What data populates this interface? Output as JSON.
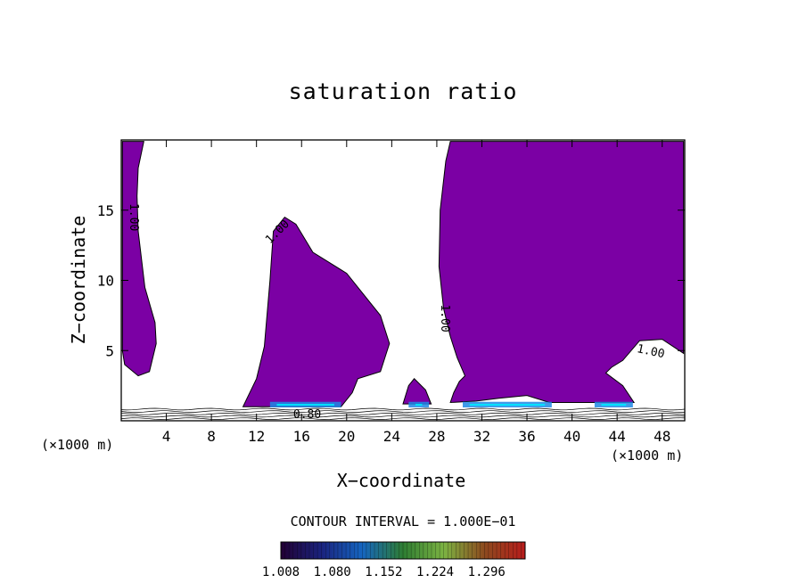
{
  "chart_data": {
    "type": "heatmap",
    "title": "saturation ratio",
    "xlabel": "X−coordinate",
    "ylabel": "Z−coordinate",
    "x_unit_label": "(×1000 m)",
    "xlim": [
      0,
      50
    ],
    "ylim": [
      0,
      20
    ],
    "x_ticks": [
      "4",
      "8",
      "12",
      "16",
      "20",
      "24",
      "28",
      "32",
      "36",
      "40",
      "44",
      "48"
    ],
    "x_tick_values": [
      4,
      8,
      12,
      16,
      20,
      24,
      28,
      32,
      36,
      40,
      44,
      48
    ],
    "y_ticks": [
      "5",
      "10",
      "15"
    ],
    "y_tick_values": [
      5,
      10,
      15
    ],
    "contour_interval_label": "CONTOUR INTERVAL = 1.000E−01",
    "contour_labels": [
      {
        "text": "1.00",
        "x": 1.2,
        "z": 14.5,
        "angle": 90
      },
      {
        "text": "1.00",
        "x": 13.8,
        "z": 13.5,
        "angle": -45
      },
      {
        "text": "1.00",
        "x": 28.8,
        "z": 7.3,
        "angle": 90
      },
      {
        "text": "1.00",
        "x": 47.0,
        "z": 5.0,
        "angle": 12
      },
      {
        "text": "0.80",
        "x": 16.5,
        "z": 0.5,
        "angle": 0
      }
    ],
    "supersaturated_regions": [
      {
        "outline": [
          [
            0.1,
            19.9
          ],
          [
            2.0,
            19.9
          ],
          [
            1.5,
            18.0
          ],
          [
            1.4,
            16.0
          ],
          [
            1.5,
            13.5
          ],
          [
            2.1,
            9.5
          ],
          [
            3.0,
            7.0
          ],
          [
            3.1,
            5.5
          ],
          [
            2.5,
            3.5
          ],
          [
            1.5,
            3.2
          ],
          [
            0.3,
            4.0
          ],
          [
            0.1,
            5.0
          ]
        ]
      },
      {
        "outline": [
          [
            10.8,
            1.0
          ],
          [
            12.0,
            3.0
          ],
          [
            12.7,
            5.3
          ],
          [
            13.2,
            10.0
          ],
          [
            13.5,
            13.5
          ],
          [
            14.5,
            14.5
          ],
          [
            15.5,
            14.0
          ],
          [
            17.0,
            12.0
          ],
          [
            20.0,
            10.5
          ],
          [
            21.5,
            9.0
          ],
          [
            23.0,
            7.5
          ],
          [
            23.8,
            5.5
          ],
          [
            23.0,
            3.5
          ],
          [
            21.0,
            3.0
          ],
          [
            20.5,
            2.0
          ],
          [
            19.5,
            1.0
          ]
        ]
      },
      {
        "outline": [
          [
            25.0,
            1.2
          ],
          [
            25.5,
            2.5
          ],
          [
            26.0,
            3.0
          ],
          [
            27.0,
            2.2
          ],
          [
            27.5,
            1.2
          ]
        ]
      },
      {
        "outline": [
          [
            29.2,
            1.3
          ],
          [
            29.5,
            2.0
          ],
          [
            30.0,
            2.8
          ],
          [
            30.5,
            3.2
          ],
          [
            29.8,
            4.5
          ],
          [
            29.2,
            6.0
          ],
          [
            28.6,
            8.0
          ],
          [
            28.2,
            11.0
          ],
          [
            28.3,
            15.0
          ],
          [
            28.8,
            18.5
          ],
          [
            29.2,
            19.9
          ],
          [
            49.9,
            19.9
          ],
          [
            49.9,
            4.8
          ],
          [
            48.0,
            5.8
          ],
          [
            46.0,
            5.7
          ],
          [
            44.5,
            4.3
          ],
          [
            43.5,
            3.8
          ],
          [
            43.0,
            3.4
          ],
          [
            44.5,
            2.5
          ],
          [
            45.5,
            1.3
          ],
          [
            38.0,
            1.3
          ],
          [
            36.0,
            1.8
          ],
          [
            33.5,
            1.6
          ],
          [
            31.5,
            1.4
          ]
        ]
      }
    ],
    "colorbar": {
      "min": 1.008,
      "max": 1.35,
      "tick_labels": [
        "1.008",
        "1.080",
        "1.152",
        "1.224",
        "1.296"
      ],
      "tick_values": [
        1.008,
        1.08,
        1.152,
        1.224,
        1.296
      ],
      "colors": [
        "#220033",
        "#1a237e",
        "#1565c0",
        "#2e7d32",
        "#7cb342",
        "#8d4a1e",
        "#b71c1c"
      ]
    },
    "colors": {
      "fill": "#7b00a4",
      "background": "#ffffff"
    }
  }
}
